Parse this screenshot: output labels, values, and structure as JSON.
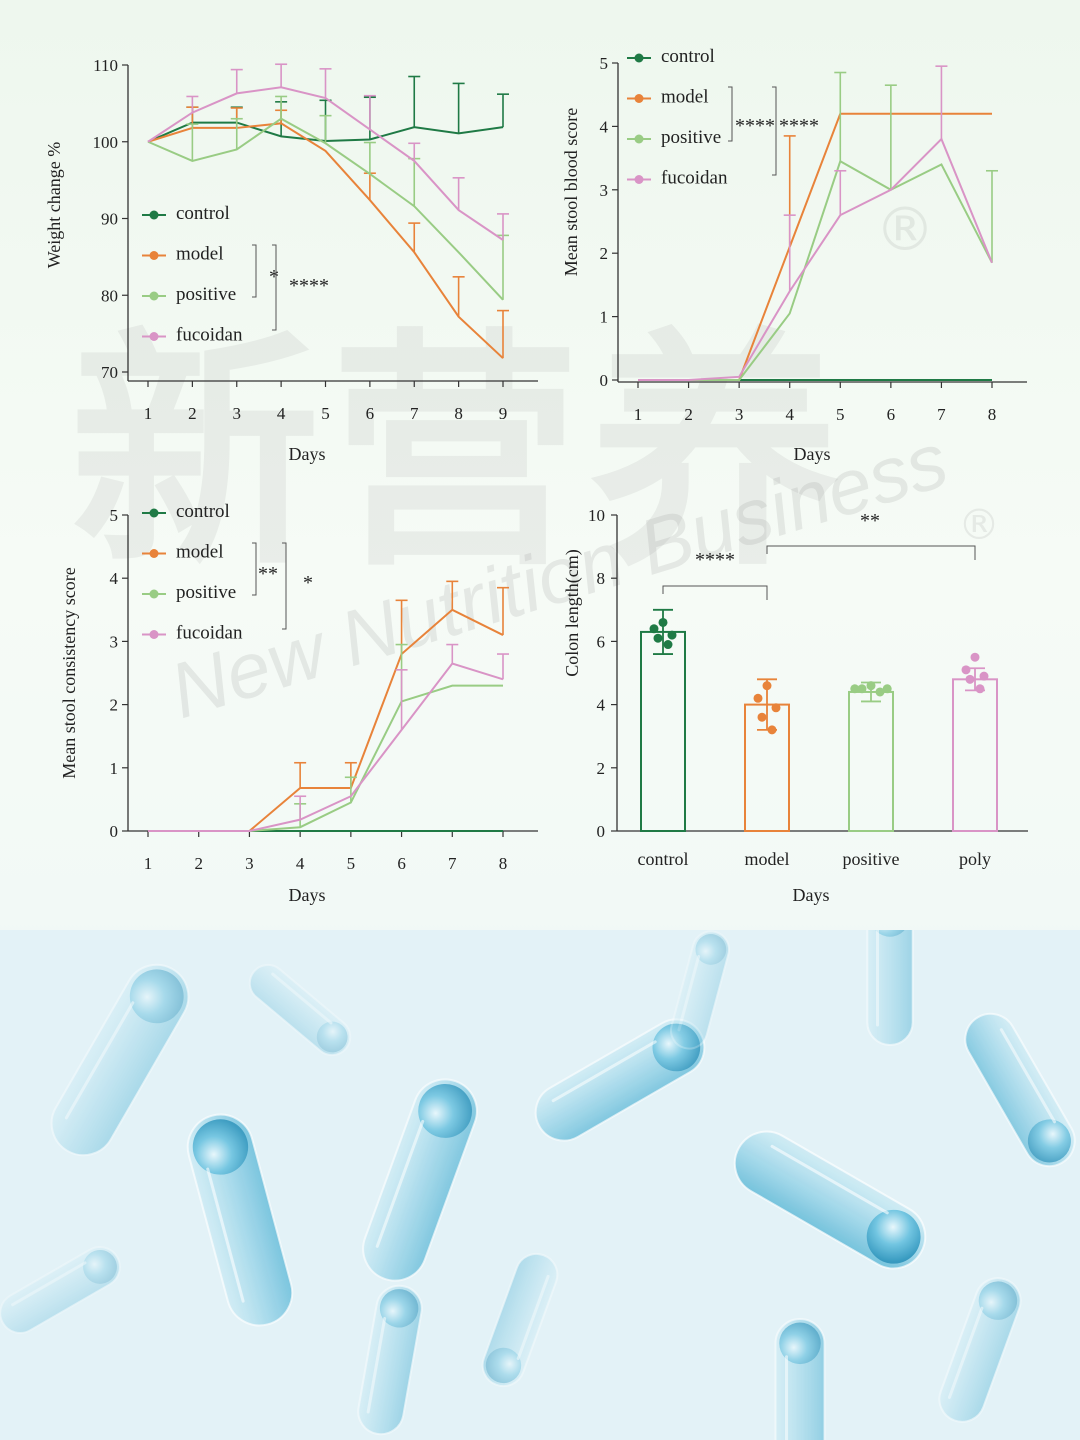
{
  "watermark": {
    "chinese": "新营养",
    "english": "New Nutrition Business",
    "registered": "®"
  },
  "colors": {
    "control": "#1f7a45",
    "model": "#e8833a",
    "positive": "#99cc84",
    "fucoidan": "#d994c6",
    "axis": "#333333"
  },
  "chart_data": [
    {
      "type": "line",
      "id": "weight",
      "title": "",
      "xlabel": "Days",
      "ylabel": "Weight change %",
      "x": [
        1,
        2,
        3,
        4,
        5,
        6,
        7,
        8,
        9
      ],
      "xlim": [
        1,
        9
      ],
      "ylim": [
        70,
        110
      ],
      "yticks": [
        70,
        80,
        90,
        100,
        110
      ],
      "legend": [
        "control",
        "model",
        "positive",
        "fucoidan"
      ],
      "series": [
        {
          "name": "control",
          "values": [
            100,
            102.5,
            102.5,
            100.7,
            100.1,
            100.3,
            101.9,
            101.1,
            101.9
          ],
          "err": [
            0,
            2,
            2,
            4.5,
            5.3,
            5.5,
            6.6,
            6.5,
            4.3
          ]
        },
        {
          "name": "model",
          "values": [
            100,
            101.8,
            101.8,
            102.4,
            98.8,
            92.4,
            85.6,
            77.2,
            71.8
          ],
          "err": [
            0,
            2.7,
            2.6,
            1.7,
            0,
            3.5,
            3.8,
            5.2,
            6.2
          ]
        },
        {
          "name": "positive",
          "values": [
            100,
            97.5,
            99,
            103,
            99.8,
            95.8,
            91.6,
            85.6,
            79.4
          ],
          "err": [
            0,
            4.8,
            4,
            2.9,
            3.6,
            4.1,
            6.2,
            0,
            8.4
          ]
        },
        {
          "name": "fucoidan",
          "values": [
            100,
            103.8,
            106.3,
            107.1,
            105.7,
            101.6,
            97.5,
            91.1,
            87.2
          ],
          "err": [
            0,
            2.1,
            3.1,
            3,
            3.8,
            4.4,
            2.3,
            4.2,
            3.4
          ]
        }
      ],
      "significance": [
        {
          "groups": "model–positive",
          "label": "*"
        },
        {
          "groups": "model–fucoidan",
          "label": "****"
        }
      ]
    },
    {
      "type": "line",
      "id": "blood",
      "title": "",
      "xlabel": "Days",
      "ylabel": "Mean stool blood score",
      "x": [
        1,
        2,
        3,
        4,
        5,
        6,
        7,
        8
      ],
      "xlim": [
        1,
        8
      ],
      "ylim": [
        0,
        5
      ],
      "yticks": [
        0,
        1,
        2,
        3,
        4,
        5
      ],
      "legend": [
        "control",
        "model",
        "positive",
        "fucoidan"
      ],
      "series": [
        {
          "name": "control",
          "values": [
            0,
            0,
            0,
            0,
            0,
            0,
            0,
            0
          ],
          "err": [
            0,
            0,
            0,
            0,
            0,
            0,
            0,
            0
          ]
        },
        {
          "name": "model",
          "values": [
            0,
            0,
            0,
            2.1,
            4.2,
            4.2,
            4.2,
            4.2
          ],
          "err": [
            0,
            0,
            0,
            1.75,
            0,
            0,
            0,
            0
          ]
        },
        {
          "name": "positive",
          "values": [
            0,
            0,
            0,
            1.05,
            3.45,
            3,
            3.4,
            1.85
          ],
          "err": [
            0,
            0,
            0,
            0,
            1.4,
            1.65,
            0,
            1.45
          ]
        },
        {
          "name": "fucoidan",
          "values": [
            0,
            0,
            0.05,
            1.4,
            2.6,
            3,
            3.8,
            1.85
          ],
          "err": [
            0,
            0,
            0,
            1.2,
            0.7,
            0,
            1.15,
            0
          ]
        }
      ],
      "significance": [
        {
          "groups": "model–positive",
          "label": "****"
        },
        {
          "groups": "model–fucoidan",
          "label": "****"
        }
      ]
    },
    {
      "type": "line",
      "id": "consistency",
      "title": "",
      "xlabel": "Days",
      "ylabel": "Mean stool consistency score",
      "x": [
        1,
        2,
        3,
        4,
        5,
        6,
        7,
        8
      ],
      "xlim": [
        1,
        8
      ],
      "ylim": [
        0,
        5
      ],
      "yticks": [
        0,
        1,
        2,
        3,
        4,
        5
      ],
      "legend": [
        "control",
        "model",
        "positive",
        "fucoidan"
      ],
      "series": [
        {
          "name": "control",
          "values": [
            0,
            0,
            0,
            0,
            0,
            0,
            0,
            0
          ],
          "err": [
            0,
            0,
            0,
            0,
            0,
            0,
            0,
            0
          ]
        },
        {
          "name": "model",
          "values": [
            0,
            0,
            0,
            0.68,
            0.68,
            2.8,
            3.5,
            3.1
          ],
          "err": [
            0,
            0,
            0,
            0.4,
            0.4,
            0.85,
            0.45,
            0.75
          ]
        },
        {
          "name": "positive",
          "values": [
            0,
            0,
            0,
            0.06,
            0.45,
            2.05,
            2.3,
            2.3
          ],
          "err": [
            0,
            0,
            0,
            0.37,
            0.4,
            0.9,
            0,
            0
          ]
        },
        {
          "name": "fucoidan",
          "values": [
            0,
            0,
            0,
            0.18,
            0.55,
            1.6,
            2.65,
            2.4
          ],
          "err": [
            0,
            0,
            0,
            0.37,
            0,
            0.95,
            0.3,
            0.4
          ]
        }
      ],
      "significance": [
        {
          "groups": "model–positive",
          "label": "**"
        },
        {
          "groups": "model–fucoidan",
          "label": "*"
        }
      ]
    },
    {
      "type": "bar",
      "id": "colon",
      "title": "",
      "xlabel": "Days",
      "ylabel": "Colon length(cm)",
      "categories": [
        "control",
        "model",
        "positive",
        "poly"
      ],
      "ylim": [
        0,
        10
      ],
      "yticks": [
        0,
        2,
        4,
        6,
        8,
        10
      ],
      "series": [
        {
          "name": "Colon length",
          "values": [
            6.3,
            4,
            4.4,
            4.8
          ],
          "err": [
            0.7,
            0.8,
            0.3,
            0.35
          ]
        }
      ],
      "points": [
        [
          6.6,
          6.4,
          6.2,
          6.1,
          5.9
        ],
        [
          4.6,
          4.2,
          3.9,
          3.6,
          3.2
        ],
        [
          4.6,
          4.5,
          4.5,
          4.5,
          4.4
        ],
        [
          5.5,
          5.1,
          4.9,
          4.8,
          4.5
        ]
      ],
      "bar_colors": [
        "#1f7a45",
        "#e8833a",
        "#99cc84",
        "#d994c6"
      ],
      "significance": [
        {
          "groups": "control–model",
          "label": "****"
        },
        {
          "groups": "model–poly",
          "label": "**"
        }
      ]
    }
  ]
}
